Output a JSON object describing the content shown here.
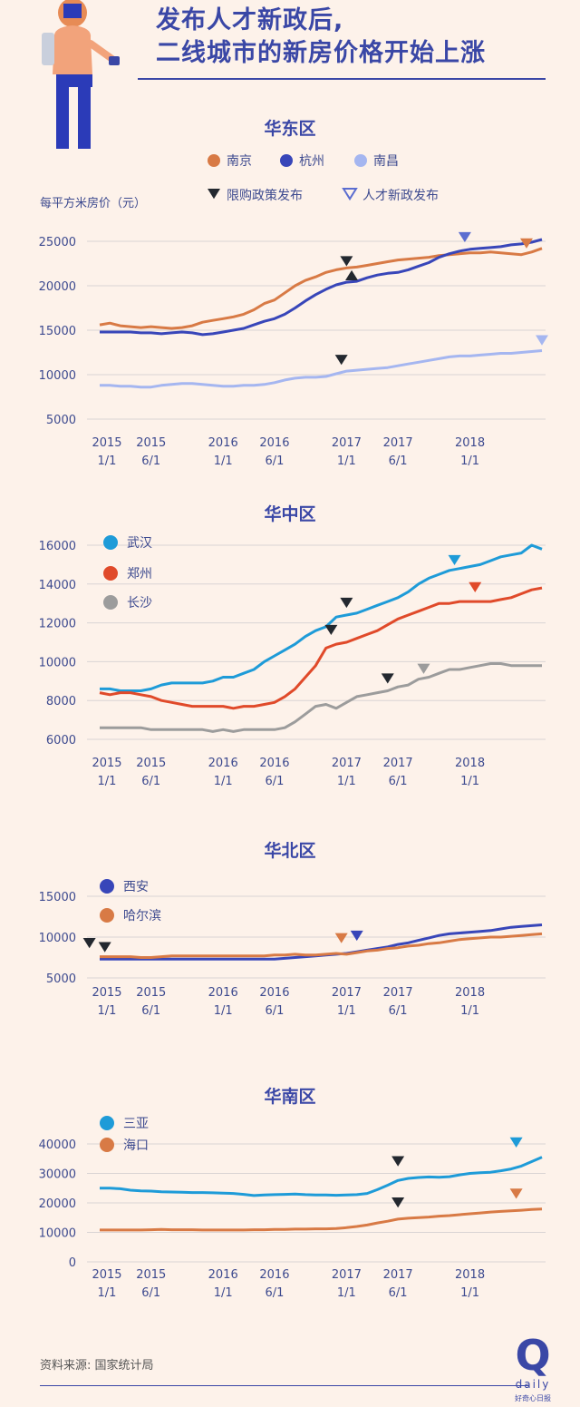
{
  "header": {
    "title_line1": "发布人才新政后,",
    "title_line2": "二线城市的新房价格开始上涨"
  },
  "footer": {
    "source": "资料来源: 国家统计局",
    "brand_letter": "Q",
    "brand_sub": "daily",
    "brand_name": "好奇心日报"
  },
  "chart_data": [
    {
      "type": "line",
      "title": "华东区",
      "ylabel": "每平方米房价（元）",
      "ylim": [
        5000,
        25000
      ],
      "yticks": [
        5000,
        10000,
        15000,
        20000,
        25000
      ],
      "ytick_labels": [
        "5000",
        "10000",
        "15000",
        "20000",
        "25000"
      ],
      "xlim": [
        0,
        43
      ],
      "xticks": [
        {
          "x": 0,
          "l1": "2015",
          "l2": "1/1"
        },
        {
          "x": 5,
          "l1": "2015",
          "l2": "6/1"
        },
        {
          "x": 12,
          "l1": "2016",
          "l2": "1/1"
        },
        {
          "x": 17,
          "l1": "2016",
          "l2": "6/1"
        },
        {
          "x": 24,
          "l1": "2017",
          "l2": "1/1"
        },
        {
          "x": 29,
          "l1": "2017",
          "l2": "6/1"
        },
        {
          "x": 36,
          "l1": "2018",
          "l2": "1/1"
        }
      ],
      "legend": [
        "限购政策发布",
        "人才新政发布"
      ],
      "legend_colors": [
        "#23282f",
        "#5b6dd0"
      ],
      "series": [
        {
          "name": "南京",
          "color": "#d87a45",
          "values": [
            15600,
            15800,
            15500,
            15400,
            15300,
            15400,
            15300,
            15200,
            15300,
            15500,
            15900,
            16100,
            16300,
            16500,
            16800,
            17300,
            18000,
            18400,
            19200,
            20000,
            20600,
            21000,
            21500,
            21800,
            22000,
            22100,
            22300,
            22500,
            22700,
            22900,
            23000,
            23100,
            23200,
            23400,
            23500,
            23600,
            23700,
            23700,
            23800,
            23700,
            23600,
            23500,
            23800,
            24200
          ]
        },
        {
          "name": "杭州",
          "color": "#3846b9",
          "values": [
            14800,
            14800,
            14800,
            14800,
            14700,
            14700,
            14600,
            14700,
            14800,
            14700,
            14500,
            14600,
            14800,
            15000,
            15200,
            15600,
            16000,
            16300,
            16800,
            17500,
            18300,
            19000,
            19600,
            20100,
            20400,
            20500,
            20900,
            21200,
            21400,
            21500,
            21800,
            22200,
            22600,
            23200,
            23600,
            23900,
            24100,
            24200,
            24300,
            24400,
            24600,
            24700,
            24900,
            25200
          ]
        },
        {
          "name": "南昌",
          "color": "#a5b6f0",
          "values": [
            8800,
            8800,
            8700,
            8700,
            8600,
            8600,
            8800,
            8900,
            9000,
            9000,
            8900,
            8800,
            8700,
            8700,
            8800,
            8800,
            8900,
            9100,
            9400,
            9600,
            9700,
            9700,
            9800,
            10100,
            10400,
            10500,
            10600,
            10700,
            10800,
            11000,
            11200,
            11400,
            11600,
            11800,
            12000,
            12100,
            12100,
            12200,
            12300,
            12400,
            12400,
            12500,
            12600,
            12700
          ]
        }
      ],
      "markers": [
        {
          "type": "limit",
          "x": 24,
          "y": 21600,
          "dir": "down"
        },
        {
          "type": "limit",
          "x": 24.5,
          "y": 20300,
          "dir": "up"
        },
        {
          "type": "limit",
          "x": 23.5,
          "y": 10500,
          "dir": "down"
        },
        {
          "type": "talent",
          "x": 35.5,
          "y": 24300,
          "dir": "down"
        },
        {
          "type": "talent",
          "x": 41.5,
          "y": 23600,
          "dir": "down",
          "color": "#d87a45"
        },
        {
          "type": "talent",
          "x": 43,
          "y": 12700,
          "dir": "down",
          "color": "#a5b6f0"
        }
      ]
    },
    {
      "type": "line",
      "title": "华中区",
      "ylim": [
        6000,
        16000
      ],
      "yticks": [
        6000,
        8000,
        10000,
        12000,
        14000,
        16000
      ],
      "ytick_labels": [
        "6000",
        "8000",
        "10000",
        "12000",
        "14000",
        "16000"
      ],
      "xlim": [
        0,
        43
      ],
      "xticks": [
        {
          "x": 0,
          "l1": "2015",
          "l2": "1/1"
        },
        {
          "x": 5,
          "l1": "2015",
          "l2": "6/1"
        },
        {
          "x": 12,
          "l1": "2016",
          "l2": "1/1"
        },
        {
          "x": 17,
          "l1": "2016",
          "l2": "6/1"
        },
        {
          "x": 24,
          "l1": "2017",
          "l2": "1/1"
        },
        {
          "x": 29,
          "l1": "2017",
          "l2": "6/1"
        },
        {
          "x": 36,
          "l1": "2018",
          "l2": "1/1"
        }
      ],
      "series": [
        {
          "name": "武汉",
          "color": "#1e9bd8",
          "values": [
            8600,
            8600,
            8500,
            8500,
            8500,
            8600,
            8800,
            8900,
            8900,
            8900,
            8900,
            9000,
            9200,
            9200,
            9400,
            9600,
            10000,
            10300,
            10600,
            10900,
            11300,
            11600,
            11800,
            12300,
            12400,
            12500,
            12700,
            12900,
            13100,
            13300,
            13600,
            14000,
            14300,
            14500,
            14700,
            14800,
            14900,
            15000,
            15200,
            15400,
            15500,
            15600,
            16000,
            15800
          ]
        },
        {
          "name": "郑州",
          "color": "#e04a2a",
          "values": [
            8400,
            8300,
            8400,
            8400,
            8300,
            8200,
            8000,
            7900,
            7800,
            7700,
            7700,
            7700,
            7700,
            7600,
            7700,
            7700,
            7800,
            7900,
            8200,
            8600,
            9200,
            9800,
            10700,
            10900,
            11000,
            11200,
            11400,
            11600,
            11900,
            12200,
            12400,
            12600,
            12800,
            13000,
            13000,
            13100,
            13100,
            13100,
            13100,
            13200,
            13300,
            13500,
            13700,
            13800
          ]
        },
        {
          "name": "长沙",
          "color": "#9c9c9c",
          "values": [
            6600,
            6600,
            6600,
            6600,
            6600,
            6500,
            6500,
            6500,
            6500,
            6500,
            6500,
            6400,
            6500,
            6400,
            6500,
            6500,
            6500,
            6500,
            6600,
            6900,
            7300,
            7700,
            7800,
            7600,
            7900,
            8200,
            8300,
            8400,
            8500,
            8700,
            8800,
            9100,
            9200,
            9400,
            9600,
            9600,
            9700,
            9800,
            9900,
            9900,
            9800,
            9800,
            9800,
            9800
          ]
        }
      ],
      "markers": [
        {
          "type": "limit",
          "x": 24,
          "y": 12500,
          "dir": "down"
        },
        {
          "type": "limit",
          "x": 22.5,
          "y": 11100,
          "dir": "down"
        },
        {
          "type": "limit",
          "x": 28,
          "y": 8600,
          "dir": "down"
        },
        {
          "type": "talent",
          "x": 34.5,
          "y": 14700,
          "dir": "down",
          "color": "#1e9bd8"
        },
        {
          "type": "talent",
          "x": 36.5,
          "y": 13300,
          "dir": "down",
          "color": "#e04a2a"
        },
        {
          "type": "talent",
          "x": 31.5,
          "y": 9100,
          "dir": "down",
          "color": "#9c9c9c"
        }
      ]
    },
    {
      "type": "line",
      "title": "华北区",
      "ylim": [
        5000,
        15000
      ],
      "yticks": [
        5000,
        10000,
        15000
      ],
      "ytick_labels": [
        "5000",
        "10000",
        "15000"
      ],
      "xlim": [
        0,
        43
      ],
      "xticks": [
        {
          "x": 0,
          "l1": "2015",
          "l2": "1/1"
        },
        {
          "x": 5,
          "l1": "2015",
          "l2": "6/1"
        },
        {
          "x": 12,
          "l1": "2016",
          "l2": "1/1"
        },
        {
          "x": 17,
          "l1": "2016",
          "l2": "6/1"
        },
        {
          "x": 24,
          "l1": "2017",
          "l2": "1/1"
        },
        {
          "x": 29,
          "l1": "2017",
          "l2": "6/1"
        },
        {
          "x": 36,
          "l1": "2018",
          "l2": "1/1"
        }
      ],
      "series": [
        {
          "name": "西安",
          "color": "#3846b9",
          "values": [
            7300,
            7300,
            7300,
            7300,
            7300,
            7300,
            7300,
            7300,
            7300,
            7300,
            7300,
            7300,
            7300,
            7300,
            7300,
            7300,
            7300,
            7300,
            7400,
            7500,
            7600,
            7700,
            7800,
            7900,
            8000,
            8200,
            8400,
            8600,
            8800,
            9100,
            9300,
            9600,
            9900,
            10200,
            10400,
            10500,
            10600,
            10700,
            10800,
            11000,
            11200,
            11300,
            11400,
            11500
          ]
        },
        {
          "name": "哈尔滨",
          "color": "#d87a45",
          "values": [
            7600,
            7600,
            7600,
            7600,
            7500,
            7500,
            7600,
            7700,
            7700,
            7700,
            7700,
            7700,
            7700,
            7700,
            7700,
            7700,
            7700,
            7800,
            7800,
            7900,
            7800,
            7800,
            7900,
            8000,
            7900,
            8100,
            8300,
            8400,
            8600,
            8700,
            8900,
            9000,
            9200,
            9300,
            9500,
            9700,
            9800,
            9900,
            10000,
            10000,
            10100,
            10200,
            10300,
            10400
          ]
        }
      ],
      "markers": [
        {
          "type": "limit",
          "x": -1,
          "y": 8000,
          "dir": "down"
        },
        {
          "type": "limit",
          "x": 0.5,
          "y": 7500,
          "dir": "down"
        },
        {
          "type": "talent",
          "x": 25,
          "y": 8900,
          "dir": "down",
          "color": "#3846b9"
        },
        {
          "type": "talent",
          "x": 23.5,
          "y": 8600,
          "dir": "down",
          "color": "#d87a45"
        }
      ]
    },
    {
      "type": "line",
      "title": "华南区",
      "ylim": [
        0,
        40000
      ],
      "yticks": [
        0,
        10000,
        20000,
        30000,
        40000
      ],
      "ytick_labels": [
        "0",
        "10000",
        "20000",
        "30000",
        "40000"
      ],
      "xlim": [
        0,
        43
      ],
      "xticks": [
        {
          "x": 0,
          "l1": "2015",
          "l2": "1/1"
        },
        {
          "x": 5,
          "l1": "2015",
          "l2": "6/1"
        },
        {
          "x": 12,
          "l1": "2016",
          "l2": "1/1"
        },
        {
          "x": 17,
          "l1": "2016",
          "l2": "6/1"
        },
        {
          "x": 24,
          "l1": "2017",
          "l2": "1/1"
        },
        {
          "x": 29,
          "l1": "2017",
          "l2": "6/1"
        },
        {
          "x": 36,
          "l1": "2018",
          "l2": "1/1"
        }
      ],
      "series": [
        {
          "name": "三亚",
          "color": "#1e9bd8",
          "values": [
            25000,
            25000,
            24800,
            24300,
            24100,
            24000,
            23800,
            23700,
            23600,
            23500,
            23500,
            23400,
            23300,
            23200,
            22900,
            22500,
            22700,
            22800,
            22900,
            23000,
            22800,
            22700,
            22700,
            22600,
            22700,
            22800,
            23200,
            24500,
            26000,
            27600,
            28300,
            28600,
            28800,
            28700,
            28900,
            29500,
            30000,
            30200,
            30400,
            30900,
            31500,
            32500,
            34000,
            35500
          ]
        },
        {
          "name": "海口",
          "color": "#d87a45",
          "values": [
            10800,
            10800,
            10800,
            10800,
            10800,
            10900,
            11000,
            10900,
            10900,
            10900,
            10800,
            10800,
            10800,
            10800,
            10800,
            10900,
            10900,
            11000,
            11000,
            11100,
            11100,
            11200,
            11200,
            11300,
            11600,
            12000,
            12500,
            13200,
            13800,
            14500,
            14800,
            15000,
            15200,
            15500,
            15700,
            16000,
            16300,
            16600,
            16900,
            17100,
            17300,
            17500,
            17800,
            17900
          ]
        }
      ],
      "markers": [
        {
          "type": "limit",
          "x": 29,
          "y": 30600,
          "dir": "down"
        },
        {
          "type": "limit",
          "x": 29,
          "y": 16600,
          "dir": "down"
        },
        {
          "type": "talent",
          "x": 40.5,
          "y": 37000,
          "dir": "down",
          "color": "#1e9bd8"
        },
        {
          "type": "talent",
          "x": 40.5,
          "y": 19600,
          "dir": "down",
          "color": "#d87a45"
        }
      ]
    }
  ]
}
